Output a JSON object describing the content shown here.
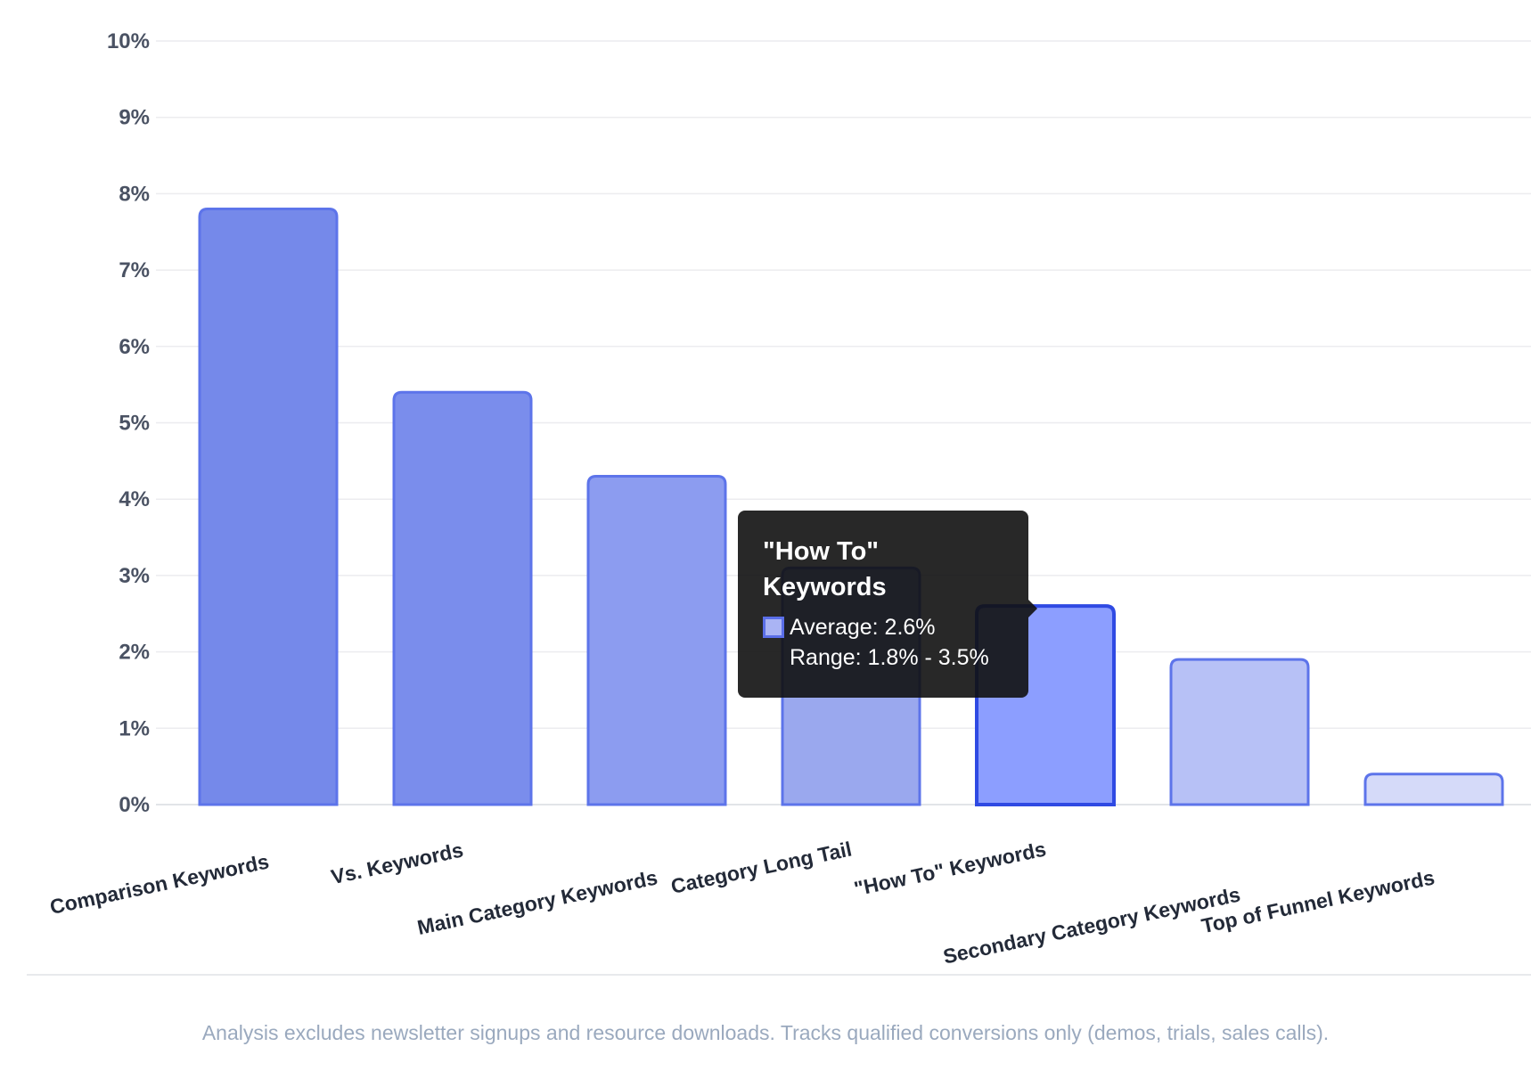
{
  "chart_data": {
    "type": "bar",
    "categories": [
      "Comparison Keywords",
      "Vs. Keywords",
      "Main Category Keywords",
      "Category Long Tail",
      "\"How To\" Keywords",
      "Secondary Category Keywords",
      "Top of Funnel Keywords"
    ],
    "values": [
      7.8,
      5.4,
      4.3,
      3.1,
      2.6,
      1.9,
      0.4
    ],
    "y_ticks": [
      "0%",
      "1%",
      "2%",
      "3%",
      "4%",
      "5%",
      "6%",
      "7%",
      "8%",
      "9%",
      "10%"
    ],
    "ylim": [
      0,
      10
    ],
    "y_unit": "%",
    "grid": true,
    "bar_fill_colors": [
      "#7589ea",
      "#7a8dec",
      "#8c9cf0",
      "#9aa8ee",
      "#8c9eff",
      "#b7c1f6",
      "#d5daf9"
    ],
    "bar_stroke_color": "#5d74ea",
    "highlight_stroke_color": "#2f4ae3",
    "highlight_index": 4
  },
  "tooltip": {
    "title_line1": "\"How To\"",
    "title_line2": "Keywords",
    "average": "Average: 2.6%",
    "range": "Range: 1.8% - 3.5%"
  },
  "footnote": "Analysis excludes newsletter signups and resource downloads. Tracks qualified conversions only (demos, trials, sales calls)."
}
